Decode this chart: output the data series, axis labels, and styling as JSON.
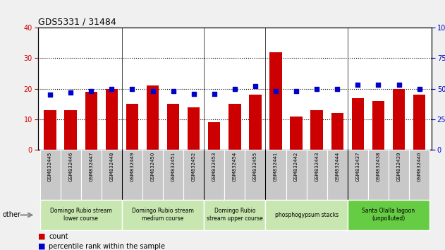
{
  "title": "GDS5331 / 31484",
  "samples": [
    "GSM832445",
    "GSM832446",
    "GSM832447",
    "GSM832448",
    "GSM832449",
    "GSM832450",
    "GSM832451",
    "GSM832452",
    "GSM832453",
    "GSM832454",
    "GSM832455",
    "GSM832441",
    "GSM832442",
    "GSM832443",
    "GSM832444",
    "GSM832437",
    "GSM832438",
    "GSM832439",
    "GSM832440"
  ],
  "counts": [
    13,
    13,
    19,
    20,
    15,
    21,
    15,
    14,
    9,
    15,
    18,
    32,
    11,
    13,
    12,
    17,
    16,
    20,
    18
  ],
  "percentiles": [
    45,
    47,
    48,
    50,
    50,
    48,
    48,
    46,
    46,
    50,
    52,
    48,
    48,
    50,
    50,
    53,
    53,
    53,
    50
  ],
  "groups": [
    {
      "label": "Domingo Rubio stream\nlower course",
      "start": 0,
      "end": 4,
      "color": "#c8e6b0"
    },
    {
      "label": "Domingo Rubio stream\nmedium course",
      "start": 4,
      "end": 8,
      "color": "#c8e6b0"
    },
    {
      "label": "Domingo Rubio\nstream upper course",
      "start": 8,
      "end": 11,
      "color": "#c8e6b0"
    },
    {
      "label": "phosphogypsum stacks",
      "start": 11,
      "end": 15,
      "color": "#c8e6b0"
    },
    {
      "label": "Santa Olalla lagoon\n(unpolluted)",
      "start": 15,
      "end": 19,
      "color": "#66cc44"
    }
  ],
  "ylim_left": [
    0,
    40
  ],
  "ylim_right": [
    0,
    100
  ],
  "yticks_left": [
    0,
    10,
    20,
    30,
    40
  ],
  "yticks_right": [
    0,
    25,
    50,
    75,
    100
  ],
  "bar_color": "#cc0000",
  "dot_color": "#0000cc",
  "sample_bg_color": "#c8c8c8",
  "plot_bg": "#ffffff",
  "fig_bg": "#f0f0f0",
  "left_tick_color": "#cc0000",
  "right_tick_color": "#0000cc",
  "group_boundaries": [
    0,
    4,
    8,
    11,
    15,
    19
  ]
}
